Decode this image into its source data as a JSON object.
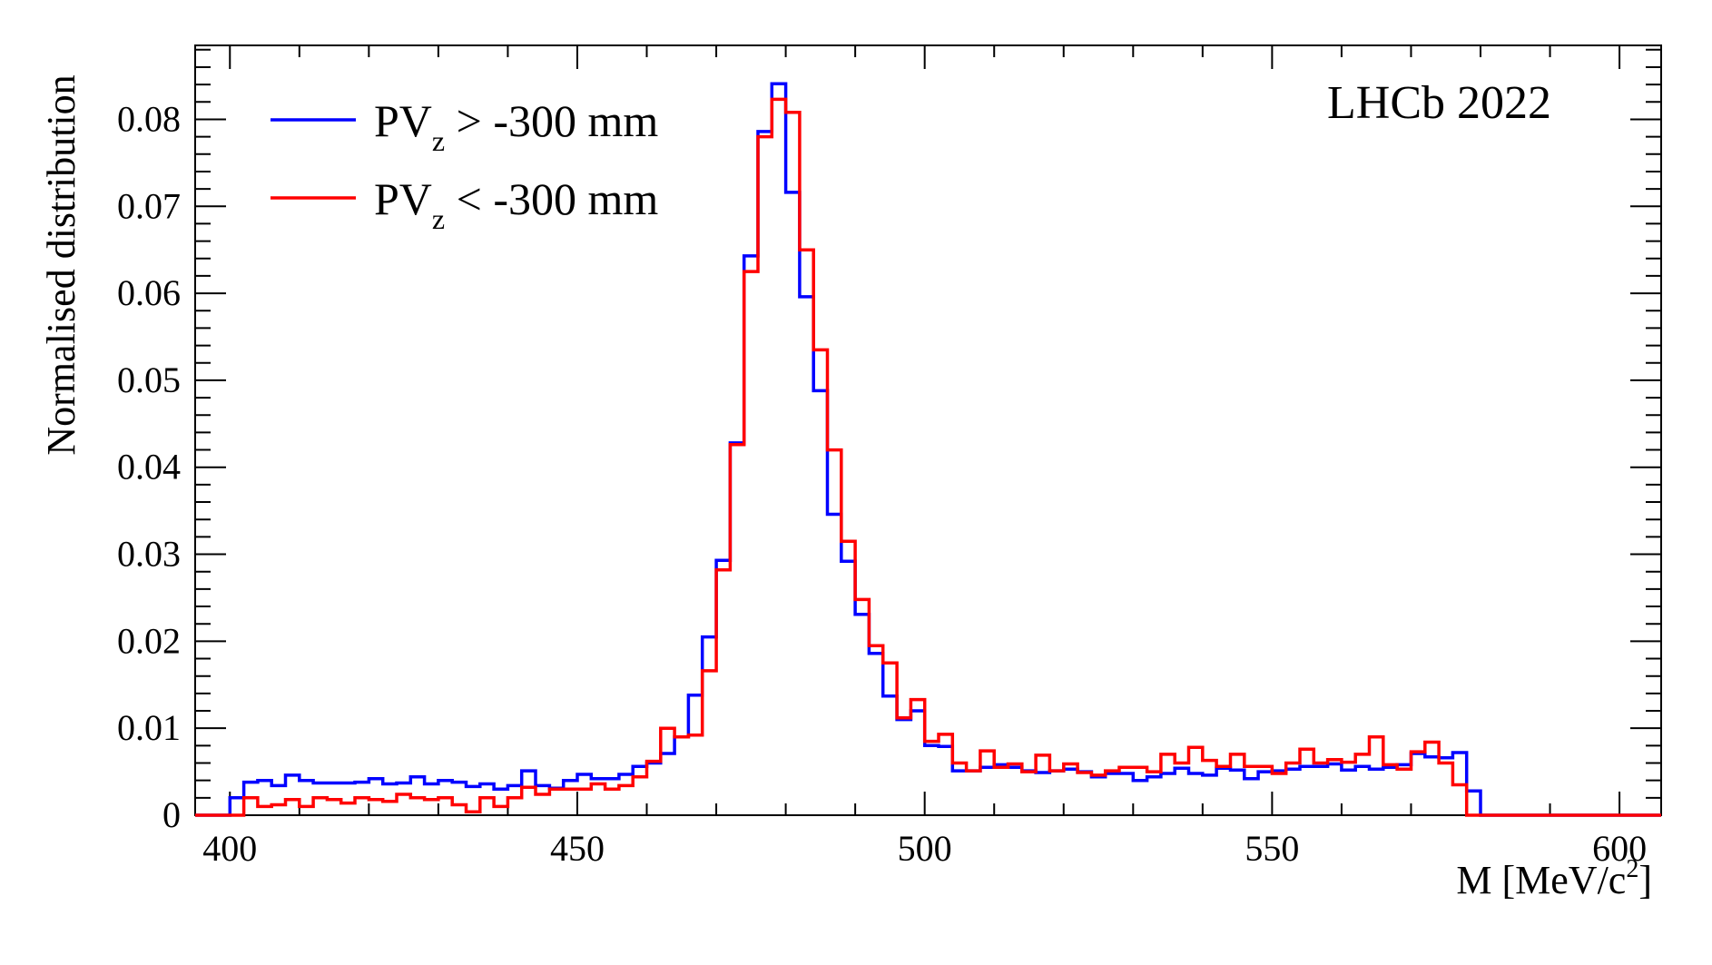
{
  "chart_data": {
    "type": "histogram",
    "xlabel": "M [MeV/c",
    "xlabel_sup": "2",
    "xlabel_close": "]",
    "ylabel": "Normalised distribution",
    "xlim": [
      395,
      606
    ],
    "ylim": [
      0,
      0.0885
    ],
    "bin_width": 2.0,
    "x_start": 400,
    "x_ticks": [
      400,
      450,
      500,
      550,
      600
    ],
    "x_tick_labels": [
      "400",
      "450",
      "500",
      "550",
      "600"
    ],
    "y_ticks": [
      0,
      0.01,
      0.02,
      0.03,
      0.04,
      0.05,
      0.06,
      0.07,
      0.08
    ],
    "y_tick_labels": [
      "0",
      "0.01",
      "0.02",
      "0.03",
      "0.04",
      "0.05",
      "0.06",
      "0.07",
      "0.08"
    ],
    "annotation": "LHCb 2022",
    "series": [
      {
        "name": "PV_z > -300 mm",
        "legend_main": "PV",
        "legend_sub": "z",
        "legend_rest": " > -300 mm",
        "color": "#0000ff",
        "values": [
          0.002,
          0.0038,
          0.004,
          0.0034,
          0.0046,
          0.004,
          0.0037,
          0.0037,
          0.0037,
          0.0038,
          0.0042,
          0.0036,
          0.0037,
          0.0044,
          0.0036,
          0.004,
          0.0038,
          0.0033,
          0.0036,
          0.003,
          0.0034,
          0.0051,
          0.0034,
          0.0031,
          0.004,
          0.0047,
          0.0042,
          0.0042,
          0.0047,
          0.0056,
          0.006,
          0.0071,
          0.009,
          0.0138,
          0.0205,
          0.0293,
          0.0428,
          0.0643,
          0.0786,
          0.0841,
          0.0716,
          0.0596,
          0.0488,
          0.0346,
          0.0292,
          0.0231,
          0.0186,
          0.0137,
          0.011,
          0.012,
          0.008,
          0.0079,
          0.0051,
          0.0051,
          0.0055,
          0.0058,
          0.0055,
          0.0051,
          0.0049,
          0.0051,
          0.0053,
          0.005,
          0.0044,
          0.0048,
          0.0048,
          0.004,
          0.0044,
          0.0048,
          0.0054,
          0.0048,
          0.0046,
          0.0054,
          0.0052,
          0.0042,
          0.005,
          0.0051,
          0.0053,
          0.0056,
          0.0056,
          0.0059,
          0.0052,
          0.0056,
          0.0053,
          0.0055,
          0.0058,
          0.0071,
          0.0067,
          0.0066,
          0.0072,
          0.0028
        ]
      },
      {
        "name": "PV_z < -300 mm",
        "legend_main": "PV",
        "legend_sub": "z",
        "legend_rest": " < -300 mm",
        "color": "#ff0000",
        "values": [
          0.0,
          0.002,
          0.001,
          0.0012,
          0.0018,
          0.001,
          0.002,
          0.0018,
          0.0014,
          0.002,
          0.0018,
          0.0016,
          0.0024,
          0.002,
          0.0018,
          0.002,
          0.0012,
          0.0004,
          0.002,
          0.001,
          0.002,
          0.0032,
          0.0024,
          0.003,
          0.003,
          0.003,
          0.0036,
          0.003,
          0.0034,
          0.0044,
          0.0062,
          0.01,
          0.009,
          0.0092,
          0.0166,
          0.0282,
          0.0426,
          0.0625,
          0.078,
          0.0823,
          0.0808,
          0.065,
          0.0535,
          0.042,
          0.0315,
          0.0248,
          0.0195,
          0.0175,
          0.0112,
          0.0133,
          0.0085,
          0.0093,
          0.006,
          0.0051,
          0.0074,
          0.0055,
          0.0059,
          0.005,
          0.0069,
          0.0051,
          0.0059,
          0.0049,
          0.0046,
          0.0051,
          0.0055,
          0.0055,
          0.005,
          0.007,
          0.006,
          0.0078,
          0.0063,
          0.0056,
          0.007,
          0.0056,
          0.0056,
          0.0048,
          0.006,
          0.0076,
          0.006,
          0.0064,
          0.0061,
          0.007,
          0.009,
          0.0058,
          0.0053,
          0.0073,
          0.0084,
          0.006,
          0.0035,
          0.0
        ]
      }
    ]
  }
}
